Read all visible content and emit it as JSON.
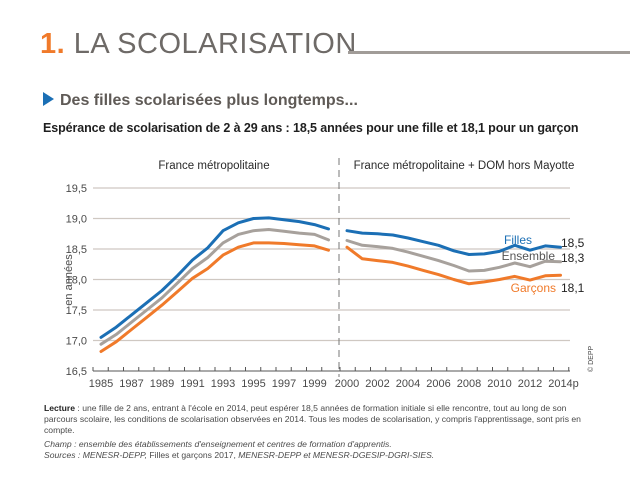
{
  "header": {
    "section_number": "1.",
    "section_title": "LA SCOLARISATION",
    "subtitle": "Des filles scolarisées plus longtemps...",
    "chart_title": "Espérance de scolarisation de 2 à 29 ans : 18,5 années pour une fille et 18,1 pour un garçon"
  },
  "colors": {
    "accent_orange": "#f07a2a",
    "filles": "#1b6fb5",
    "ensemble": "#a7a19c",
    "garcons": "#f07a2a",
    "grid": "#cfc8c2"
  },
  "chart_data": {
    "type": "line",
    "title": "Espérance de scolarisation de 2 à 29 ans : 18,5 années pour une fille et 18,1 pour un garçon",
    "ylabel": "en années",
    "xlabel": "",
    "ylim": [
      16.5,
      19.5
    ],
    "yticks": [
      "16,5",
      "17,0",
      "17,5",
      "18,0",
      "18,5",
      "19,0",
      "19,5"
    ],
    "ytick_values": [
      16.5,
      17.0,
      17.5,
      18.0,
      18.5,
      19.0,
      19.5
    ],
    "grid": true,
    "copyright": "© DEPP",
    "panels": [
      {
        "label": "France métropolitaine",
        "x": [
          1985,
          1986,
          1987,
          1988,
          1989,
          1990,
          1991,
          1992,
          1993,
          1994,
          1995,
          1996,
          1997,
          1998,
          1999,
          2000
        ],
        "xtick_labels": [
          "1985",
          "1987",
          "1989",
          "1991",
          "1993",
          "1995",
          "1997",
          "1999"
        ],
        "series": [
          {
            "name": "Filles",
            "values": [
              17.05,
              17.22,
              17.42,
              17.62,
              17.82,
              18.06,
              18.32,
              18.52,
              18.8,
              18.93,
              19.0,
              19.01,
              18.98,
              18.95,
              18.9,
              18.83
            ]
          },
          {
            "name": "Ensemble",
            "values": [
              16.94,
              17.1,
              17.3,
              17.5,
              17.7,
              17.94,
              18.18,
              18.36,
              18.6,
              18.74,
              18.8,
              18.82,
              18.79,
              18.76,
              18.74,
              18.65
            ]
          },
          {
            "name": "Garçons",
            "values": [
              16.82,
              16.98,
              17.18,
              17.38,
              17.58,
              17.8,
              18.02,
              18.18,
              18.4,
              18.53,
              18.6,
              18.6,
              18.59,
              18.57,
              18.55,
              18.48
            ]
          }
        ]
      },
      {
        "label": "France métropolitaine + DOM hors Mayotte",
        "x": [
          2000,
          2001,
          2002,
          2003,
          2004,
          2005,
          2006,
          2007,
          2008,
          2009,
          2010,
          2011,
          2012,
          2013,
          2014
        ],
        "xtick_labels": [
          "2000",
          "2002",
          "2004",
          "2006",
          "2008",
          "2010",
          "2012",
          "2014p"
        ],
        "series": [
          {
            "name": "Filles",
            "values": [
              18.8,
              18.76,
              18.75,
              18.73,
              18.68,
              18.62,
              18.56,
              18.47,
              18.41,
              18.42,
              18.46,
              18.56,
              18.48,
              18.55,
              18.53
            ],
            "end_label": "18,5"
          },
          {
            "name": "Ensemble",
            "values": [
              18.64,
              18.56,
              18.54,
              18.51,
              18.45,
              18.38,
              18.31,
              18.23,
              18.14,
              18.15,
              18.2,
              18.27,
              18.21,
              18.3,
              18.29
            ],
            "end_label": "18,3"
          },
          {
            "name": "Garçons",
            "values": [
              18.53,
              18.34,
              18.31,
              18.28,
              18.22,
              18.15,
              18.08,
              18.0,
              17.93,
              17.96,
              18.0,
              18.05,
              17.99,
              18.06,
              18.07
            ],
            "end_label": "18,1"
          }
        ]
      }
    ],
    "legend": [
      {
        "name": "Filles",
        "placement": "inline-right"
      },
      {
        "name": "Ensemble",
        "placement": "inline-right"
      },
      {
        "name": "Garçons",
        "placement": "inline-right"
      }
    ]
  },
  "notes": {
    "lecture_label": "Lecture",
    "lecture_text": " : une fille de 2 ans, entrant à l'école en 2014, peut espérer 18,5 années de formation initiale si elle rencontre, tout au long de son parcours scolaire, les conditions de scolarisation observées en 2014. Tous les modes de scolarisation, y compris l'apprentissage, sont pris en compte.",
    "champ": "Champ : ensemble des établissements d'enseignement et centres de formation d'apprentis.",
    "sources_prefix": "Sources : MENESR-DEPP,",
    "sources_mid": " Filles et garçons 2017, ",
    "sources_suffix": "MENESR-DEPP et MENESR-DGESIP-DGRI-SIES."
  }
}
